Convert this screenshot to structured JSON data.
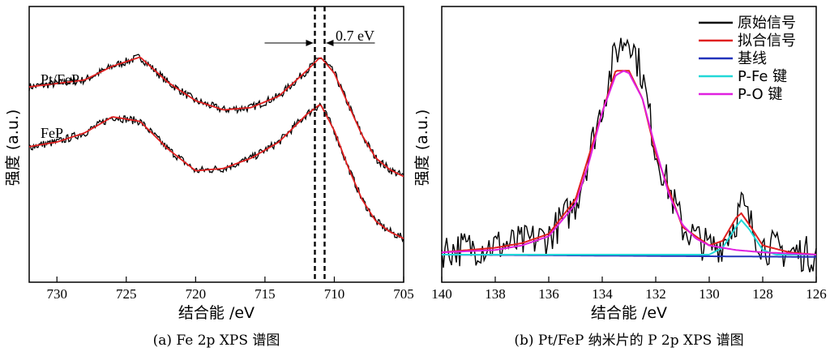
{
  "chart_data": [
    {
      "type": "line",
      "caption": "(a) Fe 2p XPS 谱图",
      "xlabel": "结合能 /eV",
      "ylabel": "强度 (a.u.)",
      "xlim": [
        732,
        705
      ],
      "x_ticks": [
        730,
        725,
        720,
        715,
        710,
        705
      ],
      "annotations": {
        "shift": "0.7 eV",
        "dashed_lines_x": [
          711.4,
          710.7
        ]
      },
      "series": [
        {
          "name": "Pt/FeP",
          "raw_color": "#000000",
          "fit_color": "#e02020",
          "x": [
            732,
            730,
            728,
            726,
            724,
            722,
            720,
            718,
            716,
            714,
            712,
            711,
            710,
            709,
            708,
            707,
            706,
            705
          ],
          "y": [
            1.7,
            1.73,
            1.76,
            1.88,
            1.96,
            1.74,
            1.58,
            1.5,
            1.52,
            1.62,
            1.84,
            1.96,
            1.82,
            1.55,
            1.28,
            1.08,
            0.98,
            0.92
          ]
        },
        {
          "name": "FeP",
          "raw_color": "#000000",
          "fit_color": "#e02020",
          "x": [
            732,
            730,
            728,
            726,
            724,
            722,
            720,
            718,
            716,
            714,
            712,
            711,
            710,
            709,
            708,
            707,
            706,
            705
          ],
          "y": [
            1.18,
            1.22,
            1.3,
            1.44,
            1.4,
            1.16,
            0.97,
            0.99,
            1.08,
            1.22,
            1.46,
            1.55,
            1.32,
            1.0,
            0.72,
            0.53,
            0.44,
            0.38
          ]
        }
      ]
    },
    {
      "type": "line",
      "caption": "(b) Pt/FeP 纳米片的 P 2p XPS 谱图",
      "xlabel": "结合能 /eV",
      "ylabel": "强度 (a.u.)",
      "xlim": [
        140,
        126
      ],
      "x_ticks": [
        140,
        138,
        136,
        134,
        132,
        130,
        128,
        126
      ],
      "legend_position": "top-right",
      "series": [
        {
          "name": "原始信号",
          "color": "#000000",
          "x": [
            140,
            139,
            138,
            137,
            136,
            135,
            134,
            133.5,
            133,
            132.5,
            132,
            131,
            130,
            129.5,
            129,
            128.8,
            128.5,
            128,
            127,
            126
          ],
          "y": [
            0.02,
            0.03,
            0.04,
            0.05,
            0.08,
            0.22,
            0.65,
            0.88,
            0.96,
            0.78,
            0.45,
            0.12,
            0.03,
            0.05,
            0.15,
            0.22,
            0.14,
            0.04,
            0.01,
            0.0
          ]
        },
        {
          "name": "拟合信号",
          "color": "#e02020",
          "x": [
            140,
            139,
            138,
            137,
            136,
            135,
            134,
            133.5,
            133,
            132.5,
            132,
            131,
            130,
            129.5,
            129,
            128.8,
            128.5,
            128,
            127,
            126
          ],
          "y": [
            0.01,
            0.02,
            0.03,
            0.05,
            0.09,
            0.24,
            0.62,
            0.8,
            0.8,
            0.68,
            0.44,
            0.12,
            0.04,
            0.06,
            0.16,
            0.18,
            0.13,
            0.04,
            0.01,
            0.0
          ]
        },
        {
          "name": "基线",
          "color": "#2233bb",
          "x": [
            140,
            126
          ],
          "y": [
            0.0,
            -0.01
          ]
        },
        {
          "name": "P-Fe 键",
          "color": "#22d8d8",
          "x": [
            140,
            131,
            130,
            129.5,
            129,
            128.8,
            128.5,
            128,
            127.5,
            126
          ],
          "y": [
            0.0,
            0.0,
            0.0,
            0.03,
            0.12,
            0.15,
            0.11,
            0.02,
            0.0,
            0.0
          ]
        },
        {
          "name": "P-O 键",
          "color": "#e020e0",
          "x": [
            140,
            138,
            137,
            136,
            135,
            134.5,
            134,
            133.5,
            133.2,
            133,
            132.5,
            132,
            131.5,
            131,
            130.5,
            130,
            129,
            128,
            126
          ],
          "y": [
            0.01,
            0.02,
            0.04,
            0.08,
            0.22,
            0.4,
            0.62,
            0.78,
            0.8,
            0.79,
            0.68,
            0.46,
            0.26,
            0.13,
            0.07,
            0.04,
            0.02,
            0.01,
            0.0
          ]
        }
      ]
    }
  ]
}
